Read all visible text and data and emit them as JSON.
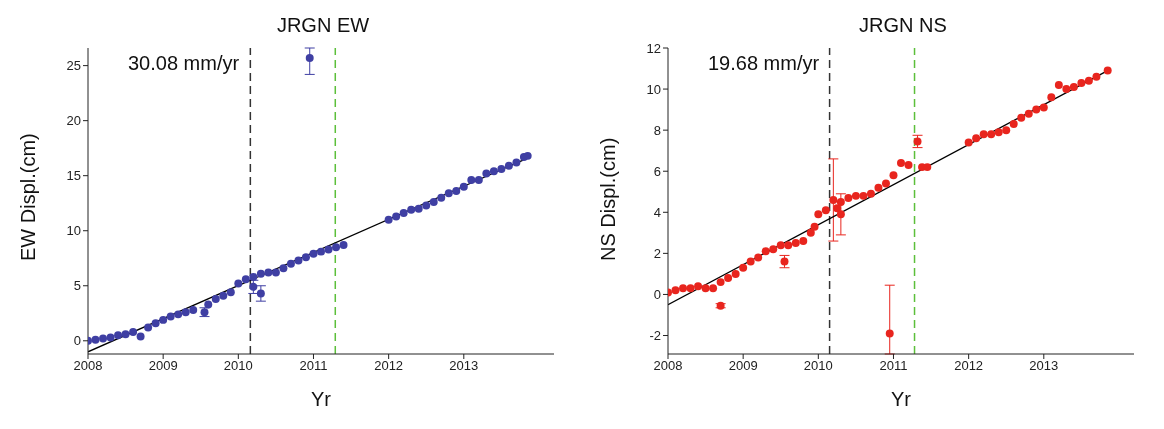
{
  "chart_data": [
    {
      "type": "scatter",
      "title": "JRGN EW",
      "xlabel": "Yr",
      "ylabel": "EW Displ.(cm)",
      "annotations": [
        "30.08 mm/yr"
      ],
      "xlim": [
        2008,
        2014.2
      ],
      "xticks": [
        2008,
        2009,
        2010,
        2011,
        2012,
        2013
      ],
      "ylim": [
        -1.2,
        26.6
      ],
      "yticks": [
        0,
        5,
        10,
        15,
        20,
        25
      ],
      "marker": "circle",
      "ref_lines": [
        {
          "axis": "x",
          "value": 2010.16,
          "color": "#333333",
          "line_style": "dashed"
        },
        {
          "axis": "x",
          "value": 2011.29,
          "color": "#5cbf3a",
          "line_style": "dashed"
        }
      ],
      "series": [
        {
          "color": "#3f3fa3",
          "x": [
            2008.0,
            2008.1,
            2008.2,
            2008.3,
            2008.4,
            2008.5,
            2008.6,
            2008.7,
            2008.8,
            2008.9,
            2009.0,
            2009.1,
            2009.2,
            2009.3,
            2009.4,
            2009.55,
            2009.6,
            2009.7,
            2009.8,
            2009.9,
            2010.0,
            2010.1,
            2010.2,
            2010.2,
            2010.3,
            2010.3,
            2010.4,
            2010.5,
            2010.6,
            2010.7,
            2010.8,
            2010.9,
            2010.95,
            2011.0,
            2011.1,
            2011.2,
            2011.3,
            2011.4,
            2012.0,
            2012.1,
            2012.2,
            2012.3,
            2012.4,
            2012.5,
            2012.6,
            2012.7,
            2012.8,
            2012.9,
            2013.0,
            2013.1,
            2013.2,
            2013.3,
            2013.4,
            2013.5,
            2013.6,
            2013.7,
            2013.8,
            2013.85
          ],
          "values": [
            0.0,
            0.1,
            0.2,
            0.3,
            0.5,
            0.6,
            0.8,
            0.4,
            1.2,
            1.6,
            1.9,
            2.2,
            2.4,
            2.6,
            2.8,
            2.6,
            3.3,
            3.8,
            4.1,
            4.4,
            5.2,
            5.6,
            5.8,
            4.9,
            6.1,
            4.3,
            6.2,
            6.2,
            6.6,
            7.0,
            7.3,
            7.6,
            25.7,
            7.9,
            8.1,
            8.3,
            8.5,
            8.7,
            11.0,
            11.3,
            11.6,
            11.9,
            12.0,
            12.3,
            12.6,
            13.0,
            13.4,
            13.6,
            14.0,
            14.6,
            14.6,
            15.2,
            15.4,
            15.6,
            15.9,
            16.2,
            16.7,
            16.8
          ],
          "errors": [
            null,
            null,
            null,
            null,
            null,
            null,
            null,
            null,
            null,
            null,
            null,
            null,
            null,
            null,
            null,
            0.4,
            null,
            null,
            null,
            null,
            null,
            null,
            null,
            0.6,
            null,
            0.7,
            null,
            null,
            null,
            null,
            null,
            null,
            [
              24.2,
              26.6
            ],
            null,
            null,
            null,
            null,
            null,
            null,
            null,
            null,
            null,
            null,
            null,
            null,
            null,
            null,
            null,
            null,
            null,
            null,
            null,
            null,
            null,
            null,
            null,
            null,
            null
          ]
        },
        {
          "type": "line",
          "color": "#000000",
          "marker": "none",
          "x": [
            2008,
            2013.85
          ],
          "values": [
            -1.0,
            16.6
          ]
        }
      ]
    },
    {
      "type": "scatter",
      "title": "JRGN NS",
      "xlabel": "Yr",
      "ylabel": "NS Displ.(cm)",
      "annotations": [
        "19.68 mm/yr"
      ],
      "xlim": [
        2008,
        2014.2
      ],
      "xticks": [
        2008,
        2009,
        2010,
        2011,
        2012,
        2013
      ],
      "ylim": [
        -2.9,
        12
      ],
      "yticks": [
        -2,
        0,
        2,
        4,
        6,
        8,
        10,
        12
      ],
      "marker": "circle",
      "ref_lines": [
        {
          "axis": "x",
          "value": 2010.15,
          "color": "#333333",
          "line_style": "dashed"
        },
        {
          "axis": "x",
          "value": 2011.28,
          "color": "#5cbf3a",
          "line_style": "dashed"
        }
      ],
      "series": [
        {
          "color": "#e8251e",
          "x": [
            2008.0,
            2008.1,
            2008.2,
            2008.3,
            2008.4,
            2008.5,
            2008.6,
            2008.7,
            2008.7,
            2008.8,
            2008.9,
            2009.0,
            2009.1,
            2009.2,
            2009.3,
            2009.4,
            2009.55,
            2009.5,
            2009.6,
            2009.7,
            2009.8,
            2009.9,
            2009.95,
            2010.0,
            2010.1,
            2010.2,
            2010.25,
            2010.3,
            2010.3,
            2010.4,
            2010.5,
            2010.6,
            2010.7,
            2010.8,
            2010.9,
            2010.95,
            2011.0,
            2011.1,
            2011.2,
            2011.32,
            2011.38,
            2011.45,
            2012.0,
            2012.1,
            2012.2,
            2012.3,
            2012.4,
            2012.5,
            2012.6,
            2012.7,
            2012.8,
            2012.9,
            2013.0,
            2013.1,
            2013.2,
            2013.3,
            2013.4,
            2013.5,
            2013.6,
            2013.7,
            2013.85
          ],
          "values": [
            0.1,
            0.2,
            0.3,
            0.3,
            0.4,
            0.3,
            0.3,
            0.6,
            -0.55,
            0.8,
            1.0,
            1.3,
            1.6,
            1.8,
            2.1,
            2.2,
            1.6,
            2.4,
            2.4,
            2.5,
            2.6,
            3.0,
            3.3,
            3.9,
            4.1,
            4.6,
            4.2,
            4.5,
            3.9,
            4.7,
            4.8,
            4.8,
            4.9,
            5.2,
            5.4,
            -1.9,
            5.8,
            6.4,
            6.3,
            7.45,
            6.2,
            6.2,
            7.4,
            7.6,
            7.8,
            7.8,
            7.9,
            8.0,
            8.3,
            8.6,
            8.8,
            9.0,
            9.1,
            9.6,
            10.2,
            10.0,
            10.1,
            10.3,
            10.4,
            10.6,
            10.9
          ],
          "errors": [
            null,
            null,
            null,
            null,
            null,
            null,
            null,
            null,
            0.1,
            null,
            null,
            null,
            null,
            null,
            null,
            null,
            0.3,
            null,
            null,
            null,
            null,
            null,
            null,
            null,
            null,
            2.0,
            null,
            null,
            1.0,
            null,
            null,
            null,
            null,
            null,
            null,
            [
              -2.9,
              0.45
            ],
            null,
            null,
            null,
            0.3,
            null,
            null,
            null,
            null,
            null,
            null,
            null,
            null,
            null,
            null,
            null,
            null,
            null,
            null,
            null,
            null,
            null,
            null,
            null,
            null,
            null
          ]
        },
        {
          "type": "line",
          "color": "#000000",
          "marker": "none",
          "x": [
            2008,
            2013.85
          ],
          "values": [
            -0.5,
            10.9
          ]
        }
      ]
    }
  ]
}
